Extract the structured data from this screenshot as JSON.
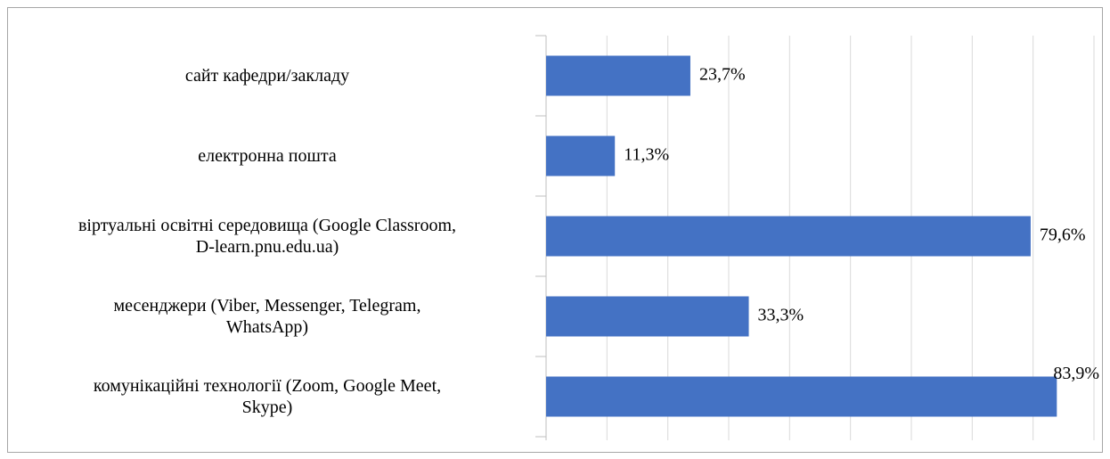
{
  "chart_data": {
    "type": "bar",
    "orientation": "horizontal",
    "categories": [
      "сайт кафедри/закладу",
      "електронна пошта",
      "віртуальні освітні середовища (Google Classroom,\nD-learn.pnu.edu.ua)",
      "месенджери (Viber, Messenger, Telegram,\nWhatsApp)",
      "комунікаційні технології (Zoom, Google Meet,\nSkype)"
    ],
    "values": [
      23.7,
      11.3,
      79.6,
      33.3,
      83.9
    ],
    "value_labels": [
      "23,7%",
      "11,3%",
      "79,6%",
      "33,3%",
      "83,9%"
    ],
    "color": "#4472c4",
    "xlim": [
      0,
      90
    ],
    "xticks": [
      0,
      10,
      20,
      30,
      40,
      50,
      60,
      70,
      80,
      90
    ],
    "grid": true
  }
}
